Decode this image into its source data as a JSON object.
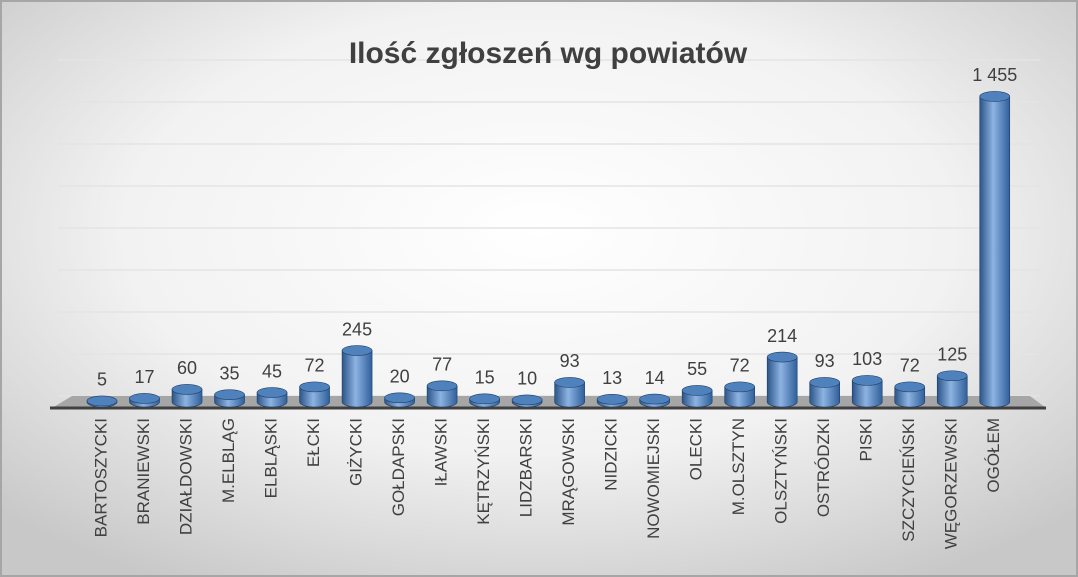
{
  "chart_data": {
    "type": "bar3d",
    "title": "Ilość zgłoszeń wg powiatów",
    "categories": [
      "BARTOSZYCKI",
      "BRANIEWSKI",
      "DZIAŁDOWSKI",
      "M.ELBLĄG",
      "ELBLĄSKI",
      "EŁCKI",
      "GIŻYCKI",
      "GOŁDAPSKI",
      "IŁAWSKI",
      "KĘTRZYŃSKI",
      "LIDZBARSKI",
      "MRĄGOWSKI",
      "NIDZICKI",
      "NOWOMIEJSKI",
      "OLECKI",
      "M.OLSZTYN",
      "OLSZTYŃSKI",
      "OSTRÓDZKI",
      "PISKI",
      "SZCZYCIEŃSKI",
      "WĘGORZEWSKI",
      "OGÓŁEM"
    ],
    "values": [
      5,
      17,
      60,
      35,
      45,
      72,
      245,
      20,
      77,
      15,
      10,
      93,
      13,
      14,
      55,
      72,
      214,
      93,
      103,
      72,
      125,
      1455
    ],
    "value_labels": [
      "5",
      "17",
      "60",
      "35",
      "45",
      "72",
      "245",
      "20",
      "77",
      "15",
      "10",
      "93",
      "13",
      "14",
      "55",
      "72",
      "214",
      "93",
      "103",
      "72",
      "125",
      "1 455"
    ],
    "color": "#4f81bd",
    "ylim": [
      0,
      1600
    ],
    "yticks": [
      0,
      200,
      400,
      600,
      800,
      1000,
      1200,
      1400,
      1600
    ],
    "grid": true
  }
}
